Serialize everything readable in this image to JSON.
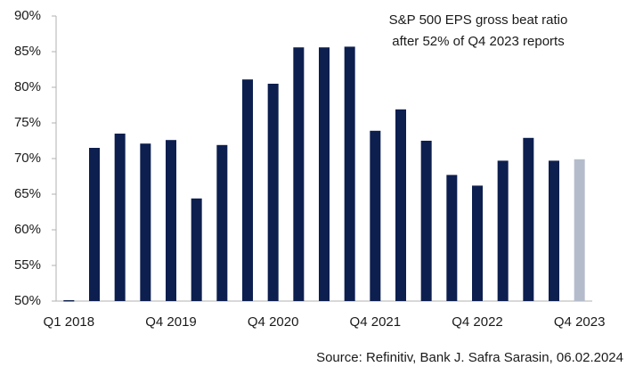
{
  "chart_data": {
    "type": "bar",
    "annotation": [
      "S&P 500 EPS gross beat ratio",
      "after 52% of Q4 2023 reports"
    ],
    "source": "Source: Refinitiv, Bank J. Safra Sarasin, 06.02.2024",
    "categories": [
      "Q1 2018",
      null,
      null,
      null,
      "Q4 2019",
      null,
      null,
      null,
      "Q4 2020",
      null,
      null,
      null,
      "Q4 2021",
      null,
      null,
      null,
      "Q4 2022",
      null,
      null,
      null,
      "Q4 2023"
    ],
    "values": [
      50,
      71.5,
      73.5,
      72.1,
      72.6,
      64.4,
      71.9,
      81.1,
      80.5,
      85.6,
      85.6,
      85.7,
      73.9,
      76.9,
      72.5,
      67.7,
      66.2,
      69.7,
      72.9,
      69.7,
      69.9
    ],
    "colors": [
      "#0d1f4f",
      "#0d1f4f",
      "#0d1f4f",
      "#0d1f4f",
      "#0d1f4f",
      "#0d1f4f",
      "#0d1f4f",
      "#0d1f4f",
      "#0d1f4f",
      "#0d1f4f",
      "#0d1f4f",
      "#0d1f4f",
      "#0d1f4f",
      "#0d1f4f",
      "#0d1f4f",
      "#0d1f4f",
      "#0d1f4f",
      "#0d1f4f",
      "#0d1f4f",
      "#0d1f4f",
      "#b4bccb"
    ],
    "ylim": [
      50,
      90
    ],
    "yticks": [
      {
        "value": 50,
        "label": "50%"
      },
      {
        "value": 55,
        "label": "55%"
      },
      {
        "value": 60,
        "label": "60%"
      },
      {
        "value": 65,
        "label": "65%"
      },
      {
        "value": 70,
        "label": "70%"
      },
      {
        "value": 75,
        "label": "75%"
      },
      {
        "value": 80,
        "label": "80%"
      },
      {
        "value": 85,
        "label": "85%"
      },
      {
        "value": 90,
        "label": "90%"
      }
    ],
    "grid": false
  }
}
